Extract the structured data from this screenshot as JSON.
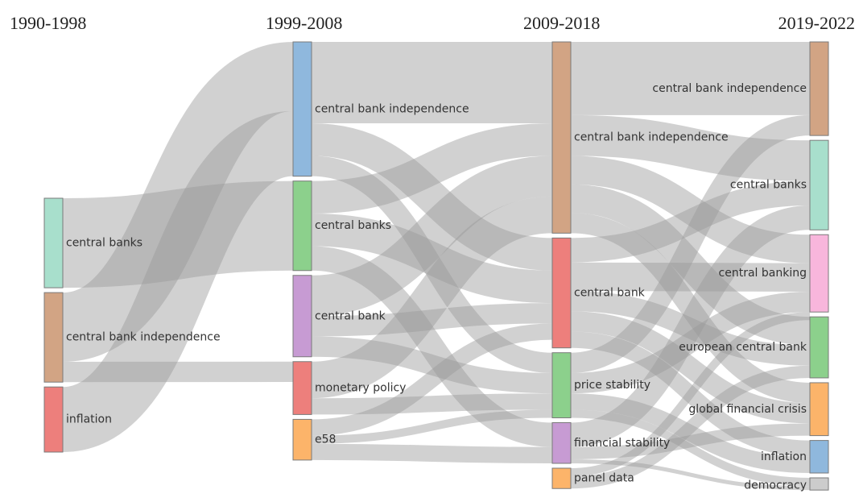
{
  "periods": [
    {
      "id": "p1",
      "label": "1990-1998"
    },
    {
      "id": "p2",
      "label": "1999-2008"
    },
    {
      "id": "p3",
      "label": "2009-2018"
    },
    {
      "id": "p4",
      "label": "2019-2022"
    }
  ],
  "chart_data": {
    "type": "sankey",
    "nodes": [
      {
        "id": "a1",
        "period": 0,
        "label": "central banks",
        "color": "#a8dfcc",
        "value": 22
      },
      {
        "id": "a2",
        "period": 0,
        "label": "central bank independence",
        "color": "#d2a484",
        "value": 22
      },
      {
        "id": "a3",
        "period": 0,
        "label": "inflation",
        "color": "#ed7f7c",
        "value": 16
      },
      {
        "id": "b1",
        "period": 1,
        "label": "central bank independence",
        "color": "#8fb8dd",
        "value": 33
      },
      {
        "id": "b2",
        "period": 1,
        "label": "central banks",
        "color": "#8cd08c",
        "value": 22
      },
      {
        "id": "b3",
        "period": 1,
        "label": "central bank",
        "color": "#c79bd3",
        "value": 20
      },
      {
        "id": "b4",
        "period": 1,
        "label": "monetary policy",
        "color": "#ed7f7c",
        "value": 13
      },
      {
        "id": "b5",
        "period": 1,
        "label": "e58",
        "color": "#fcb46a",
        "value": 10
      },
      {
        "id": "c1",
        "period": 2,
        "label": "central bank independence",
        "color": "#d2a484",
        "value": 47
      },
      {
        "id": "c2",
        "period": 2,
        "label": "central bank",
        "color": "#ed7f7c",
        "value": 27
      },
      {
        "id": "c3",
        "period": 2,
        "label": "price stability",
        "color": "#8cd08c",
        "value": 16
      },
      {
        "id": "c4",
        "period": 2,
        "label": "financial stability",
        "color": "#c79bd3",
        "value": 10
      },
      {
        "id": "c5",
        "period": 2,
        "label": "panel data",
        "color": "#fcb46a",
        "value": 5
      },
      {
        "id": "d1",
        "period": 3,
        "label": "central bank independence",
        "color": "#d2a484",
        "value": 23
      },
      {
        "id": "d2",
        "period": 3,
        "label": "central banks",
        "color": "#a8dfcc",
        "value": 22
      },
      {
        "id": "d3",
        "period": 3,
        "label": "central banking",
        "color": "#f8b6dc",
        "value": 19
      },
      {
        "id": "d4",
        "period": 3,
        "label": "european central bank",
        "color": "#8cd08c",
        "value": 15
      },
      {
        "id": "d5",
        "period": 3,
        "label": "global financial crisis",
        "color": "#fcb46a",
        "value": 13
      },
      {
        "id": "d6",
        "period": 3,
        "label": "inflation",
        "color": "#8fb8dd",
        "value": 8
      },
      {
        "id": "d7",
        "period": 3,
        "label": "democracy",
        "color": "#cccccc",
        "value": 3
      }
    ],
    "links": [
      {
        "source": "a3",
        "target": "b1",
        "value": 16
      },
      {
        "source": "a1",
        "target": "b2",
        "value": 22
      },
      {
        "source": "a2",
        "target": "b1",
        "value": 17
      },
      {
        "source": "a2",
        "target": "b4",
        "value": 5
      },
      {
        "source": "b1",
        "target": "c1",
        "value": 20
      },
      {
        "source": "b1",
        "target": "c2",
        "value": 8
      },
      {
        "source": "b1",
        "target": "c3",
        "value": 5
      },
      {
        "source": "b2",
        "target": "c1",
        "value": 8
      },
      {
        "source": "b2",
        "target": "c2",
        "value": 8
      },
      {
        "source": "b2",
        "target": "c4",
        "value": 6
      },
      {
        "source": "b3",
        "target": "c1",
        "value": 10
      },
      {
        "source": "b3",
        "target": "c2",
        "value": 5
      },
      {
        "source": "b3",
        "target": "c3",
        "value": 5
      },
      {
        "source": "b4",
        "target": "c1",
        "value": 9
      },
      {
        "source": "b4",
        "target": "c3",
        "value": 4
      },
      {
        "source": "b5",
        "target": "c3",
        "value": 2
      },
      {
        "source": "b5",
        "target": "c2",
        "value": 4
      },
      {
        "source": "b5",
        "target": "c4",
        "value": 4
      },
      {
        "source": "c1",
        "target": "d1",
        "value": 18
      },
      {
        "source": "c1",
        "target": "d2",
        "value": 10
      },
      {
        "source": "c1",
        "target": "d3",
        "value": 7
      },
      {
        "source": "c1",
        "target": "d4",
        "value": 7
      },
      {
        "source": "c1",
        "target": "d5",
        "value": 5
      },
      {
        "source": "c2",
        "target": "d2",
        "value": 6
      },
      {
        "source": "c2",
        "target": "d3",
        "value": 7
      },
      {
        "source": "c2",
        "target": "d4",
        "value": 5
      },
      {
        "source": "c2",
        "target": "d5",
        "value": 5
      },
      {
        "source": "c2",
        "target": "d6",
        "value": 4
      },
      {
        "source": "c3",
        "target": "d1",
        "value": 5
      },
      {
        "source": "c3",
        "target": "d3",
        "value": 5
      },
      {
        "source": "c3",
        "target": "d6",
        "value": 4
      },
      {
        "source": "c3",
        "target": "d7",
        "value": 2
      },
      {
        "source": "c4",
        "target": "d2",
        "value": 6
      },
      {
        "source": "c4",
        "target": "d5",
        "value": 3
      },
      {
        "source": "c4",
        "target": "d7",
        "value": 1
      },
      {
        "source": "c5",
        "target": "d4",
        "value": 3
      },
      {
        "source": "c5",
        "target": "d3",
        "value": 2
      }
    ]
  }
}
